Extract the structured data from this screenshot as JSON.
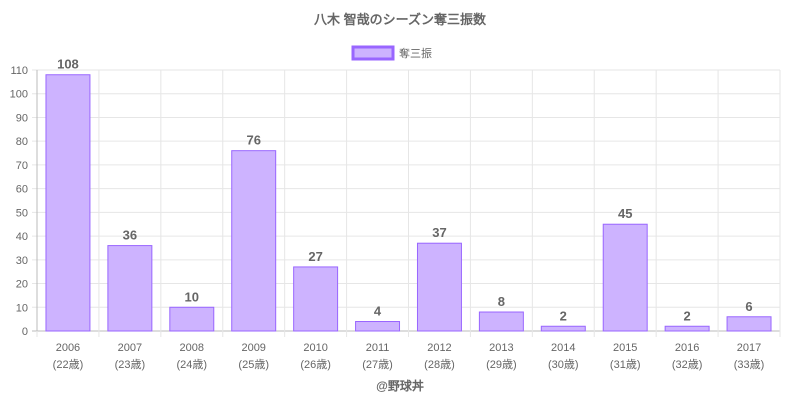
{
  "chart_data": {
    "type": "bar",
    "title": "八木 智哉のシーズン奪三振数",
    "legend": {
      "label": "奪三振",
      "placement": "top"
    },
    "categories": [
      "2006",
      "2007",
      "2008",
      "2009",
      "2010",
      "2011",
      "2012",
      "2013",
      "2014",
      "2015",
      "2016",
      "2017"
    ],
    "sublabels": [
      "(22歳)",
      "(23歳)",
      "(24歳)",
      "(25歳)",
      "(26歳)",
      "(27歳)",
      "(28歳)",
      "(29歳)",
      "(30歳)",
      "(31歳)",
      "(32歳)",
      "(33歳)"
    ],
    "values": [
      108,
      36,
      10,
      76,
      27,
      4,
      37,
      8,
      2,
      45,
      2,
      6
    ],
    "ylim": [
      0,
      110
    ],
    "yticks": [
      0,
      10,
      20,
      30,
      40,
      50,
      60,
      70,
      80,
      90,
      100,
      110
    ],
    "grid": true,
    "xlabel": "",
    "ylabel": "",
    "colors": {
      "fill": "#cdb3ff",
      "border": "#9966ff"
    }
  },
  "footer": "@野球丼"
}
